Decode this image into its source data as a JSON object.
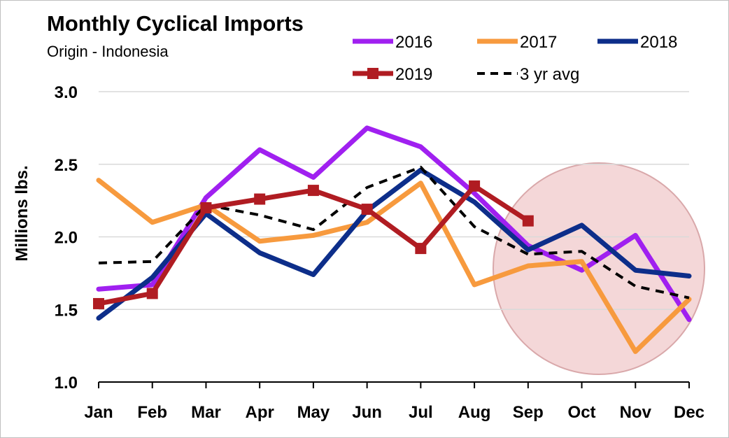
{
  "chart_data": {
    "type": "line",
    "title": "Monthly Cyclical Imports",
    "subtitle": "Origin - Indonesia",
    "xlabel": "",
    "ylabel": "Millions lbs.",
    "categories": [
      "Jan",
      "Feb",
      "Mar",
      "Apr",
      "May",
      "Jun",
      "Jul",
      "Aug",
      "Sep",
      "Oct",
      "Nov",
      "Dec"
    ],
    "ylim": [
      1.0,
      3.0
    ],
    "yticks": [
      "1.0",
      "1.5",
      "2.0",
      "2.5",
      "3.0"
    ],
    "grid": true,
    "legend_position": "top-right",
    "series": [
      {
        "name": "2016",
        "color": "#a020f0",
        "dash": false,
        "marker": false,
        "values": [
          1.64,
          1.67,
          2.27,
          2.6,
          2.41,
          2.75,
          2.62,
          2.3,
          1.94,
          1.77,
          2.01,
          1.43
        ]
      },
      {
        "name": "2017",
        "color": "#f79a3e",
        "dash": false,
        "marker": false,
        "values": [
          2.39,
          2.1,
          2.22,
          1.97,
          2.01,
          2.1,
          2.37,
          1.67,
          1.8,
          1.83,
          1.21,
          1.57
        ]
      },
      {
        "name": "2018",
        "color": "#0d2e8a",
        "dash": false,
        "marker": false,
        "values": [
          1.44,
          1.72,
          2.16,
          1.89,
          1.74,
          2.18,
          2.46,
          2.24,
          1.91,
          2.08,
          1.77,
          1.73
        ]
      },
      {
        "name": "2019",
        "color": "#b01c22",
        "dash": false,
        "marker": true,
        "values": [
          1.54,
          1.61,
          2.2,
          2.26,
          2.32,
          2.19,
          1.92,
          2.35,
          2.11,
          null,
          null,
          null
        ]
      },
      {
        "name": "3 yr avg",
        "color": "#000000",
        "dash": true,
        "marker": false,
        "values": [
          1.82,
          1.83,
          2.22,
          2.15,
          2.05,
          2.34,
          2.48,
          2.07,
          1.88,
          1.9,
          1.66,
          1.58
        ]
      }
    ],
    "highlight_color": "#f2d0d1",
    "highlight_stroke": "#d9a8aa"
  }
}
